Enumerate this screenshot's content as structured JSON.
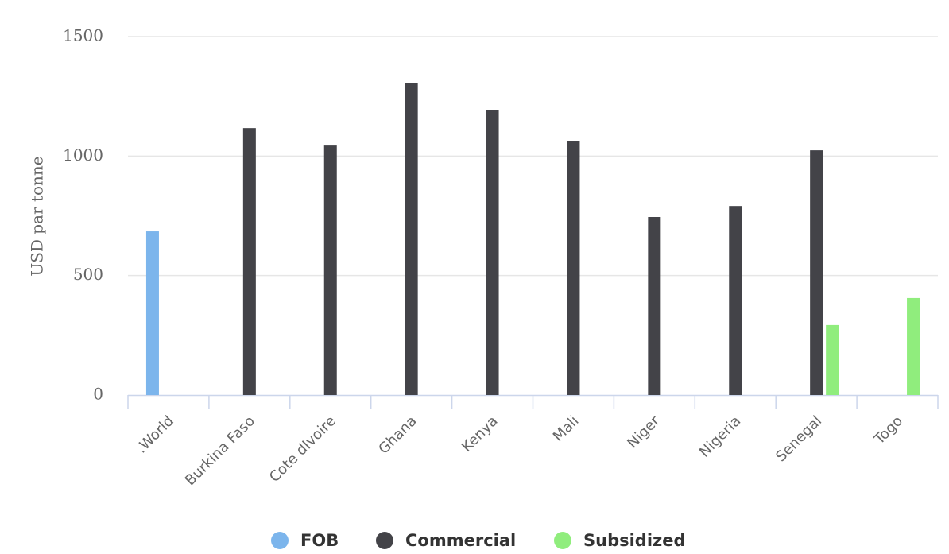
{
  "chart_data": {
    "type": "bar",
    "y_label": "USD par tonne",
    "categories": [
      ".World",
      "Burkina Faso",
      "Cote dIvoire",
      "Ghana",
      "Kenya",
      "Mali",
      "Niger",
      "Nigeria",
      "Senegal",
      "Togo"
    ],
    "series": [
      {
        "name": "FOB",
        "color": "#7cb5ec",
        "values": [
          685,
          null,
          null,
          null,
          null,
          null,
          null,
          null,
          null,
          null
        ]
      },
      {
        "name": "Commercial",
        "color": "#434348",
        "values": [
          null,
          1117,
          1044,
          1304,
          1191,
          1064,
          745,
          791,
          1024,
          null
        ]
      },
      {
        "name": "Subsidized",
        "color": "#90ed7d",
        "values": [
          null,
          null,
          null,
          null,
          null,
          null,
          null,
          null,
          293,
          406
        ]
      }
    ],
    "ylim": [
      0,
      1500
    ],
    "yticks": [
      0,
      500,
      1000,
      1500
    ],
    "grid": true
  }
}
